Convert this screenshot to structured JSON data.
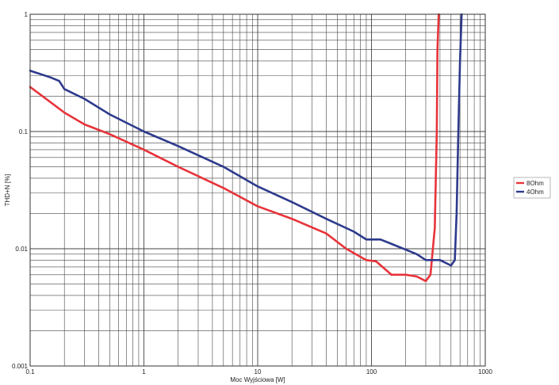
{
  "chart_data": {
    "type": "line",
    "title": "",
    "xlabel": "Moc Wyjściowa [W]",
    "ylabel": "THD+N [%]",
    "x_scale": "log",
    "y_scale": "log",
    "xlim": [
      0.1,
      1000
    ],
    "ylim": [
      0.001,
      1
    ],
    "grid": true,
    "legend_position": "right",
    "x_ticks": [
      "0.1",
      "1",
      "10",
      "100",
      "1000"
    ],
    "y_ticks": [
      "0.001",
      "0.01",
      "0.1",
      "1"
    ],
    "series": [
      {
        "name": "8Ohm",
        "color": "#e8333a",
        "x": [
          0.1,
          0.2,
          0.3,
          0.5,
          1,
          2,
          5,
          10,
          20,
          40,
          60,
          90,
          110,
          150,
          200,
          250,
          300,
          330,
          360,
          375,
          380,
          390
        ],
        "y": [
          0.24,
          0.145,
          0.115,
          0.095,
          0.07,
          0.05,
          0.033,
          0.023,
          0.018,
          0.0135,
          0.01,
          0.008,
          0.0078,
          0.006,
          0.006,
          0.0058,
          0.0053,
          0.006,
          0.015,
          0.1,
          0.5,
          1
        ]
      },
      {
        "name": "4Ohm",
        "color": "#2d3a8c",
        "x": [
          0.1,
          0.15,
          0.18,
          0.2,
          0.3,
          0.5,
          1,
          2,
          5,
          10,
          20,
          40,
          70,
          90,
          120,
          150,
          250,
          300,
          400,
          500,
          540,
          560,
          580,
          600,
          620
        ],
        "y": [
          0.33,
          0.29,
          0.27,
          0.23,
          0.19,
          0.14,
          0.1,
          0.075,
          0.05,
          0.034,
          0.025,
          0.018,
          0.014,
          0.012,
          0.012,
          0.011,
          0.009,
          0.008,
          0.008,
          0.0072,
          0.008,
          0.02,
          0.1,
          0.4,
          1
        ]
      }
    ]
  }
}
